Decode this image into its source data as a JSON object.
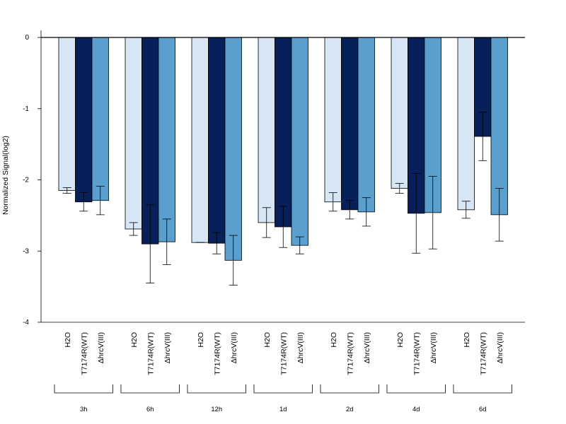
{
  "chart_data": {
    "type": "bar",
    "ylabel": "Normalized Signal(log2)",
    "xlabel": "",
    "title": "",
    "ylim": [
      -4,
      0
    ],
    "yticks": [
      0,
      -1,
      -2,
      -3,
      -4
    ],
    "series_names": [
      "H2O",
      "T7174R(WT)",
      "ΔhrcV(III)"
    ],
    "colors": [
      "#d6e6f5",
      "#08205a",
      "#5b9fce"
    ],
    "groups": [
      {
        "label": "3h",
        "values": [
          -2.15,
          -2.31,
          -2.29
        ],
        "errors": [
          0.04,
          0.13,
          0.2
        ]
      },
      {
        "label": "6h",
        "values": [
          -2.69,
          -2.9,
          -2.87
        ],
        "errors": [
          0.09,
          0.55,
          0.32
        ]
      },
      {
        "label": "12h",
        "values": [
          -2.88,
          -2.89,
          -3.13
        ],
        "errors": [
          0.0,
          0.15,
          0.35
        ]
      },
      {
        "label": "1d",
        "values": [
          -2.6,
          -2.66,
          -2.92
        ],
        "errors": [
          0.21,
          0.29,
          0.12
        ]
      },
      {
        "label": "2d",
        "values": [
          -2.31,
          -2.42,
          -2.45
        ],
        "errors": [
          0.13,
          0.13,
          0.2
        ]
      },
      {
        "label": "4d",
        "values": [
          -2.12,
          -2.47,
          -2.46
        ],
        "errors": [
          0.07,
          0.56,
          0.51
        ]
      },
      {
        "label": "6d",
        "values": [
          -2.42,
          -1.39,
          -2.49
        ],
        "errors": [
          0.12,
          0.34,
          0.37
        ]
      }
    ],
    "legend": "none",
    "grid": false
  }
}
